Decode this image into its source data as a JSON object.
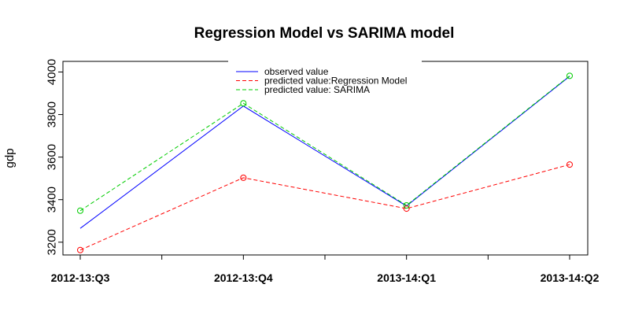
{
  "chart_data": {
    "type": "line",
    "title": "Regression Model vs SARIMA model",
    "xlabel": "",
    "ylabel": "gdp",
    "categories": [
      "2012-13:Q3",
      "2012-13:Q4",
      "2013-14:Q1",
      "2013-14:Q2"
    ],
    "yticks": [
      3200,
      3400,
      3600,
      3800,
      4000
    ],
    "ylim": [
      3140,
      4050
    ],
    "grid": false,
    "legend_position": "top-center",
    "series": [
      {
        "name": "observed value",
        "values": [
          3265,
          3840,
          3370,
          3980
        ],
        "color": "#0000ff",
        "dash": "solid",
        "markers": false
      },
      {
        "name": "predicted value:Regression Model",
        "values": [
          3163,
          3503,
          3358,
          3565
        ],
        "color": "#ff0000",
        "dash": "dashed",
        "markers": true
      },
      {
        "name": "predicted value: SARIMA",
        "values": [
          3348,
          3853,
          3373,
          3982
        ],
        "color": "#00cc00",
        "dash": "dashed",
        "markers": true
      }
    ]
  }
}
